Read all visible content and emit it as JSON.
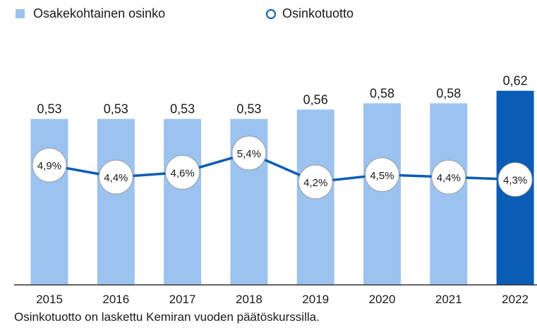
{
  "chart_data": {
    "type": "bar",
    "categories": [
      "2015",
      "2016",
      "2017",
      "2018",
      "2019",
      "2020",
      "2021",
      "2022"
    ],
    "series": [
      {
        "name": "Osakekohtainen osinko",
        "type": "bar",
        "values": [
          0.53,
          0.53,
          0.53,
          0.53,
          0.56,
          0.58,
          0.58,
          0.62
        ],
        "labels": [
          "0,53",
          "0,53",
          "0,53",
          "0,53",
          "0,56",
          "0,58",
          "0,58",
          "0,62"
        ],
        "color": "#9cc3f0",
        "highlight_color": "#0b5cb5",
        "highlight_index": 7
      },
      {
        "name": "Osinkotuotto",
        "type": "line",
        "values": [
          4.9,
          4.4,
          4.6,
          5.4,
          4.2,
          4.5,
          4.4,
          4.3
        ],
        "labels": [
          "4,9%",
          "4,4%",
          "4,6%",
          "5,4%",
          "4,2%",
          "4,5%",
          "4,4%",
          "4,3%"
        ],
        "color": "#0b5cb5"
      }
    ],
    "legend_position": "top-left",
    "grid": false
  },
  "footnote": "Osinkotuotto on laskettu Kemiran vuoden päätöskurssilla."
}
